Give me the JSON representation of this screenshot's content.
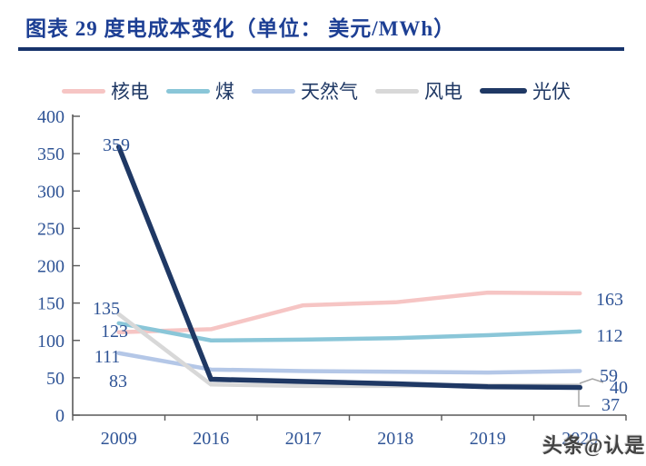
{
  "title": "图表 29 度电成本变化（单位： 美元/MWh）",
  "watermark": "头条@认是",
  "colors": {
    "title_blue": "#1d3f94",
    "rule_navy": "#17336b",
    "tick_label_blue": "#2F5496",
    "axis_gray": "#595959",
    "leader_gray": "#A6A6A6"
  },
  "chart_data": {
    "type": "line",
    "title": "度电成本变化",
    "unit": "美元/MWh",
    "categories": [
      "2009",
      "2016",
      "2017",
      "2018",
      "2019",
      "2020"
    ],
    "y_axis": {
      "min": 0,
      "max": 400,
      "step": 50,
      "ticks": [
        "0",
        "50",
        "100",
        "150",
        "200",
        "250",
        "300",
        "350",
        "400"
      ]
    },
    "grid": false,
    "legend_position": "top",
    "series": [
      {
        "name": "核电",
        "color": "#F6C5C4",
        "values": [
          111,
          115,
          147,
          151,
          164,
          163
        ],
        "start_label": "111",
        "end_label": "163"
      },
      {
        "name": "煤",
        "color": "#8AC6D8",
        "values": [
          123,
          100,
          101,
          103,
          107,
          112
        ],
        "start_label": "123",
        "end_label": "112"
      },
      {
        "name": "天然气",
        "color": "#B4C7E7",
        "values": [
          83,
          61,
          59,
          58,
          57,
          59
        ],
        "start_label": "83",
        "end_label": "59"
      },
      {
        "name": "风电",
        "color": "#D8D8D8",
        "values": [
          135,
          41,
          39,
          39,
          40,
          40
        ],
        "start_label": "135",
        "end_label": "40"
      },
      {
        "name": "光伏",
        "color": "#1F3864",
        "values": [
          359,
          48,
          45,
          42,
          38,
          37
        ],
        "start_label": "359",
        "end_label": "37"
      }
    ]
  }
}
